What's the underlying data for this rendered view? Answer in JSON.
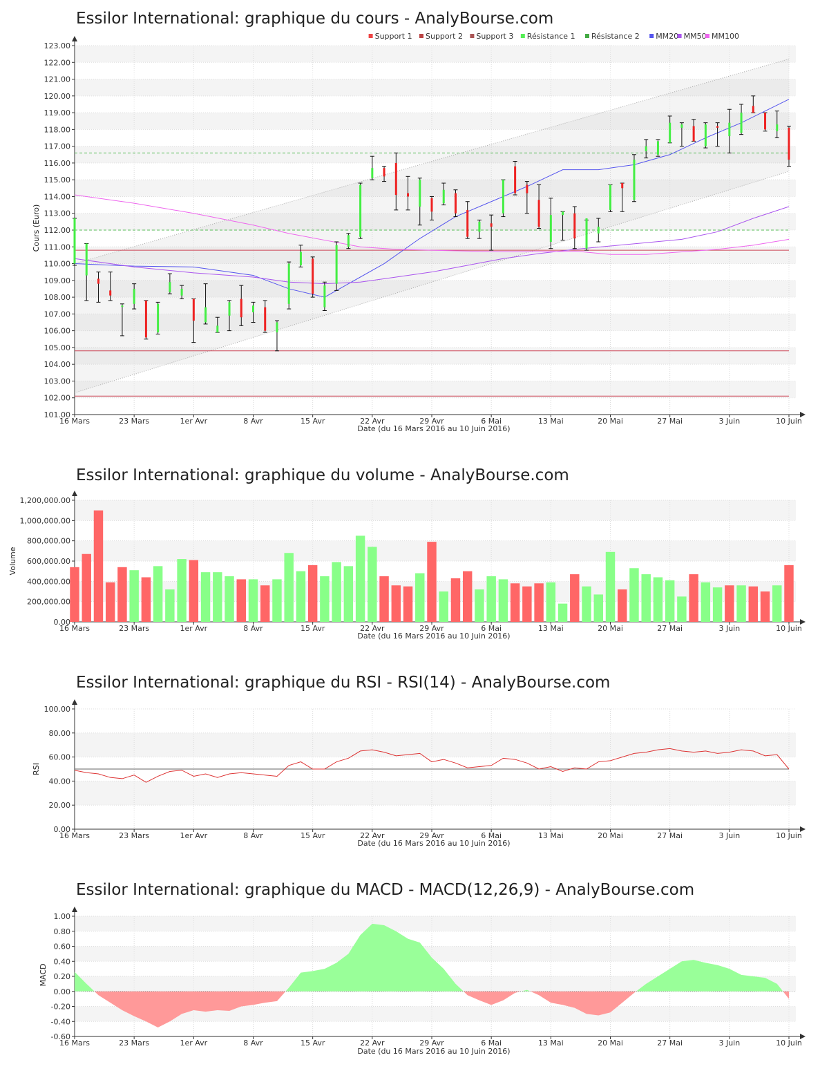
{
  "colors": {
    "up": "#44ee44",
    "down": "#ee2222",
    "vol_up": "#88ff88",
    "vol_down": "#ff6666",
    "macd_pos": "#99ff99",
    "macd_neg": "#ff9999",
    "mm20": "#5555ee",
    "mm50": "#aa55ee",
    "mm100": "#ee66ee",
    "support": "#cc4455",
    "resistance": "#55bb55",
    "rsi_line": "#dd3333",
    "band": "#eeeeee"
  },
  "x_ticks": [
    "16 Mars",
    "23 Mars",
    "1er Avr",
    "8 Avr",
    "15 Avr",
    "22 Avr",
    "29 Avr",
    "6 Mai",
    "13 Mai",
    "20 Mai",
    "27 Mai",
    "3 Juin",
    "10 Juin"
  ],
  "xlabel": "Date (du 16 Mars 2016 au 10 Juin 2016)",
  "chart_data": [
    {
      "type": "candlestick",
      "title": "Essilor International: graphique du cours - AnalyBourse.com",
      "ylabel": "Cours (Euro)",
      "ylim": [
        101,
        123
      ],
      "y_ticks": [
        "101.00",
        "102.00",
        "103.00",
        "104.00",
        "105.00",
        "106.00",
        "107.00",
        "108.00",
        "109.00",
        "110.00",
        "111.00",
        "112.00",
        "113.00",
        "114.00",
        "115.00",
        "116.00",
        "117.00",
        "118.00",
        "119.00",
        "120.00",
        "121.00",
        "122.00",
        "123.00"
      ],
      "legend": [
        "Support 1",
        "Support 2",
        "Support 3",
        "Résistance 1",
        "Résistance 2",
        "MM20",
        "MM50",
        "MM100"
      ],
      "legend_colors": [
        "#ee4444",
        "#bb4444",
        "#aa5555",
        "#55ee55",
        "#44aa44",
        "#5555ee",
        "#aa55ee",
        "#ee66ee"
      ],
      "support_levels": [
        110.8,
        104.8,
        102.1
      ],
      "resistance_levels": [
        116.6,
        112.0
      ],
      "channel_upper": [
        [
          0,
          110.0
        ],
        [
          60,
          122.2
        ]
      ],
      "channel_lower": [
        [
          0,
          102.3
        ],
        [
          60,
          115.5
        ]
      ],
      "candles": [
        [
          112.7,
          109.9,
          110.0,
          112.7
        ],
        [
          111.2,
          107.8,
          109.3,
          111.2
        ],
        [
          109.5,
          107.7,
          109.1,
          108.8
        ],
        [
          109.5,
          107.8,
          108.4,
          108.1
        ],
        [
          107.6,
          105.7,
          107.5,
          107.5
        ],
        [
          108.8,
          107.3,
          107.6,
          108.5
        ],
        [
          107.8,
          105.5,
          107.8,
          105.6
        ],
        [
          107.7,
          105.8,
          105.9,
          107.6
        ],
        [
          109.4,
          108.2,
          108.3,
          108.9
        ],
        [
          108.7,
          107.9,
          108.1,
          108.5
        ],
        [
          107.9,
          105.3,
          107.9,
          106.6
        ],
        [
          108.8,
          106.4,
          106.5,
          107.4
        ],
        [
          106.8,
          105.9,
          105.9,
          106.3
        ],
        [
          107.8,
          106.0,
          106.9,
          107.7
        ],
        [
          108.7,
          106.3,
          107.9,
          106.8
        ],
        [
          107.7,
          106.5,
          107.1,
          107.5
        ],
        [
          107.8,
          105.9,
          107.4,
          106.0
        ],
        [
          106.6,
          104.8,
          105.9,
          106.5
        ],
        [
          110.1,
          107.3,
          107.6,
          110.0
        ],
        [
          111.1,
          109.8,
          109.9,
          110.7
        ],
        [
          110.4,
          108.0,
          110.3,
          108.2
        ],
        [
          108.9,
          107.2,
          107.4,
          108.7
        ],
        [
          111.3,
          108.4,
          108.8,
          111.1
        ],
        [
          111.8,
          110.9,
          111.0,
          111.7
        ],
        [
          114.8,
          111.5,
          111.6,
          114.7
        ],
        [
          116.4,
          115.0,
          115.1,
          115.7
        ],
        [
          115.8,
          114.9,
          115.7,
          115.2
        ],
        [
          116.6,
          113.2,
          116.0,
          114.1
        ],
        [
          115.2,
          113.2,
          114.2,
          114.0
        ],
        [
          115.1,
          112.3,
          113.4,
          115.0
        ],
        [
          114.0,
          112.6,
          113.9,
          113.1
        ],
        [
          114.8,
          113.5,
          113.6,
          114.4
        ],
        [
          114.4,
          112.8,
          114.2,
          113.0
        ],
        [
          113.7,
          111.5,
          113.2,
          111.6
        ],
        [
          112.6,
          111.5,
          111.9,
          112.5
        ],
        [
          112.9,
          110.8,
          112.4,
          112.2
        ],
        [
          115.0,
          112.8,
          113.0,
          115.0
        ],
        [
          116.1,
          114.1,
          115.8,
          114.2
        ],
        [
          114.9,
          113.0,
          114.7,
          114.2
        ],
        [
          114.7,
          112.1,
          113.8,
          112.2
        ],
        [
          113.9,
          110.9,
          111.3,
          112.9
        ],
        [
          113.1,
          111.4,
          112.9,
          113.1
        ],
        [
          113.4,
          110.9,
          113.0,
          111.5
        ],
        [
          112.6,
          110.8,
          110.9,
          112.7
        ],
        [
          112.7,
          111.3,
          111.8,
          112.2
        ],
        [
          114.7,
          113.1,
          113.2,
          114.7
        ],
        [
          114.8,
          113.1,
          114.8,
          114.5
        ],
        [
          116.5,
          113.7,
          113.8,
          116.2
        ],
        [
          117.4,
          116.3,
          116.7,
          117.0
        ],
        [
          117.4,
          116.4,
          116.5,
          117.3
        ],
        [
          118.8,
          117.2,
          117.2,
          118.4
        ],
        [
          118.4,
          117.0,
          118.1,
          118.3
        ],
        [
          118.6,
          117.3,
          118.2,
          117.3
        ],
        [
          118.4,
          116.9,
          117.0,
          118.3
        ],
        [
          118.4,
          117.0,
          118.2,
          118.1
        ],
        [
          119.2,
          116.6,
          117.6,
          118.4
        ],
        [
          119.5,
          117.7,
          117.8,
          119.0
        ],
        [
          120.0,
          119.0,
          119.4,
          119.0
        ],
        [
          119.0,
          117.9,
          119.0,
          118.0
        ],
        [
          119.1,
          117.5,
          117.9,
          118.3
        ],
        [
          118.2,
          115.8,
          118.1,
          116.2
        ]
      ],
      "mm20": [
        [
          0,
          110.0
        ],
        [
          5,
          109.85
        ],
        [
          10,
          109.8
        ],
        [
          15,
          109.3
        ],
        [
          18,
          108.5
        ],
        [
          21,
          108.0
        ],
        [
          23,
          108.8
        ],
        [
          26,
          110.0
        ],
        [
          29,
          111.5
        ],
        [
          32,
          112.8
        ],
        [
          35,
          113.7
        ],
        [
          38,
          114.6
        ],
        [
          41,
          115.6
        ],
        [
          44,
          115.6
        ],
        [
          47,
          115.9
        ],
        [
          50,
          116.5
        ],
        [
          53,
          117.5
        ],
        [
          56,
          118.4
        ],
        [
          60,
          119.8
        ]
      ],
      "mm50": [
        [
          0,
          110.3
        ],
        [
          5,
          109.8
        ],
        [
          10,
          109.45
        ],
        [
          15,
          109.2
        ],
        [
          18,
          108.9
        ],
        [
          21,
          108.8
        ],
        [
          24,
          108.9
        ],
        [
          27,
          109.2
        ],
        [
          30,
          109.5
        ],
        [
          33,
          109.9
        ],
        [
          36,
          110.3
        ],
        [
          39,
          110.6
        ],
        [
          42,
          110.85
        ],
        [
          45,
          111.05
        ],
        [
          48,
          111.25
        ],
        [
          51,
          111.45
        ],
        [
          54,
          111.9
        ],
        [
          57,
          112.7
        ],
        [
          60,
          113.4
        ]
      ],
      "mm100": [
        [
          0,
          114.1
        ],
        [
          5,
          113.6
        ],
        [
          10,
          113.0
        ],
        [
          15,
          112.3
        ],
        [
          18,
          111.8
        ],
        [
          21,
          111.4
        ],
        [
          24,
          111.0
        ],
        [
          27,
          110.85
        ],
        [
          30,
          110.8
        ],
        [
          33,
          110.75
        ],
        [
          36,
          110.7
        ],
        [
          39,
          110.7
        ],
        [
          42,
          110.75
        ],
        [
          45,
          110.55
        ],
        [
          48,
          110.55
        ],
        [
          51,
          110.7
        ],
        [
          54,
          110.85
        ],
        [
          57,
          111.1
        ],
        [
          60,
          111.45
        ]
      ]
    },
    {
      "type": "bar",
      "title": "Essilor International: graphique du volume - AnalyBourse.com",
      "ylabel": "Volume",
      "ylim": [
        0,
        1200000
      ],
      "y_ticks": [
        "0.00",
        "200,000.00",
        "400,000.00",
        "600,000.00",
        "800,000.00",
        "1,000,000.00",
        "1,200,000.00"
      ],
      "values": [
        540000,
        670000,
        1100000,
        390000,
        540000,
        510000,
        440000,
        550000,
        320000,
        620000,
        610000,
        490000,
        490000,
        450000,
        420000,
        420000,
        360000,
        420000,
        680000,
        500000,
        560000,
        450000,
        590000,
        550000,
        850000,
        740000,
        450000,
        360000,
        350000,
        480000,
        790000,
        300000,
        430000,
        500000,
        320000,
        450000,
        420000,
        380000,
        350000,
        380000,
        390000,
        180000,
        470000,
        350000,
        270000,
        690000,
        320000,
        530000,
        470000,
        440000,
        410000,
        250000,
        470000,
        390000,
        340000,
        360000,
        360000,
        350000,
        300000,
        360000,
        560000
      ],
      "up": [
        0,
        0,
        0,
        0,
        0,
        1,
        0,
        1,
        1,
        1,
        0,
        1,
        1,
        1,
        0,
        1,
        0,
        1,
        1,
        1,
        0,
        1,
        1,
        1,
        1,
        1,
        0,
        0,
        0,
        1,
        0,
        1,
        0,
        0,
        1,
        1,
        1,
        0,
        0,
        0,
        1,
        1,
        0,
        1,
        1,
        1,
        0,
        1,
        1,
        1,
        1,
        1,
        0,
        1,
        1,
        0,
        1,
        0,
        0,
        1,
        0
      ]
    },
    {
      "type": "line",
      "title": "Essilor International: graphique du RSI - RSI(14) - AnalyBourse.com",
      "ylabel": "RSI",
      "ylim": [
        0,
        100
      ],
      "y_ticks": [
        "0.00",
        "20.00",
        "40.00",
        "60.00",
        "80.00",
        "100.00"
      ],
      "reference": 50,
      "values": [
        49,
        47,
        46,
        43,
        42,
        45,
        39,
        44,
        48,
        49,
        44,
        46,
        43,
        46,
        47,
        46,
        45,
        44,
        53,
        56,
        50,
        50,
        56,
        59,
        65,
        66,
        64,
        61,
        62,
        63,
        56,
        58,
        55,
        51,
        52,
        53,
        59,
        58,
        55,
        50,
        52,
        48,
        51,
        50,
        56,
        57,
        60,
        63,
        64,
        66,
        67,
        65,
        64,
        65,
        63,
        64,
        66,
        65,
        61,
        62,
        50
      ]
    },
    {
      "type": "area",
      "title": "Essilor International: graphique du MACD - MACD(12,26,9) - AnalyBourse.com",
      "ylabel": "MACD",
      "ylim": [
        -0.6,
        1.0
      ],
      "y_ticks": [
        "-0.60",
        "-0.40",
        "-0.20",
        "0.00",
        "0.20",
        "0.40",
        "0.60",
        "0.80",
        "1.00"
      ],
      "values": [
        0.26,
        0.1,
        -0.05,
        -0.15,
        -0.25,
        -0.33,
        -0.4,
        -0.48,
        -0.4,
        -0.3,
        -0.25,
        -0.27,
        -0.25,
        -0.26,
        -0.2,
        -0.18,
        -0.15,
        -0.13,
        0.05,
        0.25,
        0.27,
        0.3,
        0.38,
        0.5,
        0.75,
        0.9,
        0.88,
        0.8,
        0.7,
        0.65,
        0.45,
        0.3,
        0.1,
        -0.05,
        -0.12,
        -0.18,
        -0.12,
        -0.02,
        0.02,
        -0.05,
        -0.15,
        -0.18,
        -0.22,
        -0.3,
        -0.32,
        -0.28,
        -0.15,
        -0.02,
        0.1,
        0.2,
        0.3,
        0.4,
        0.42,
        0.38,
        0.35,
        0.3,
        0.22,
        0.2,
        0.18,
        0.1,
        -0.1
      ]
    }
  ]
}
